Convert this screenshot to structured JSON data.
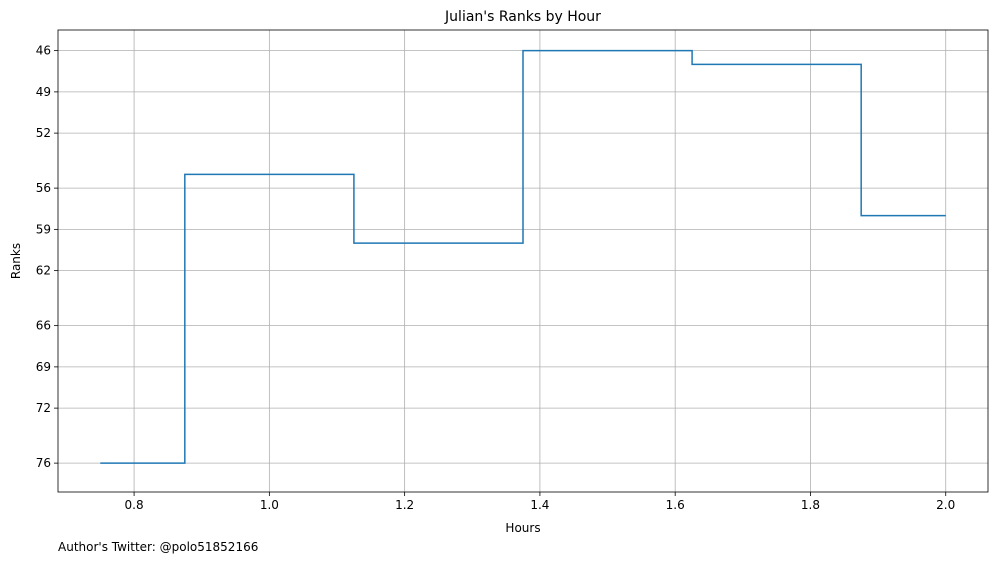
{
  "chart_data": {
    "type": "line",
    "style": "step",
    "title": "Julian's Ranks by Hour",
    "xlabel": "Hours",
    "ylabel": "Ranks",
    "xlim": [
      0.6875,
      2.0625
    ],
    "ylim": [
      78.1,
      44.5
    ],
    "y_inverted": true,
    "grid": true,
    "legend": "none",
    "x_ticks": [
      0.8,
      1.0,
      1.2,
      1.4,
      1.6,
      1.8,
      2.0
    ],
    "x_tick_labels": [
      "0.8",
      "1.0",
      "1.2",
      "1.4",
      "1.6",
      "1.8",
      "2.0"
    ],
    "y_ticks": [
      46,
      49,
      52,
      56,
      59,
      62,
      66,
      69,
      72,
      76
    ],
    "y_tick_labels": [
      "46",
      "49",
      "52",
      "56",
      "59",
      "62",
      "66",
      "69",
      "72",
      "76"
    ],
    "series": [
      {
        "color": "#1f77b4",
        "points": [
          {
            "x": 0.75,
            "y": 76
          },
          {
            "x": 0.875,
            "y": 76
          },
          {
            "x": 0.875,
            "y": 55
          },
          {
            "x": 1.125,
            "y": 55
          },
          {
            "x": 1.125,
            "y": 60
          },
          {
            "x": 1.375,
            "y": 60
          },
          {
            "x": 1.375,
            "y": 46
          },
          {
            "x": 1.625,
            "y": 46
          },
          {
            "x": 1.625,
            "y": 47
          },
          {
            "x": 1.875,
            "y": 47
          },
          {
            "x": 1.875,
            "y": 58
          },
          {
            "x": 2.0,
            "y": 58
          }
        ]
      }
    ],
    "footnote": "Author's Twitter: @polo51852166",
    "colors": {
      "grid": "#b0b0b0",
      "axes": "#000000",
      "line": "#1f77b4"
    }
  }
}
